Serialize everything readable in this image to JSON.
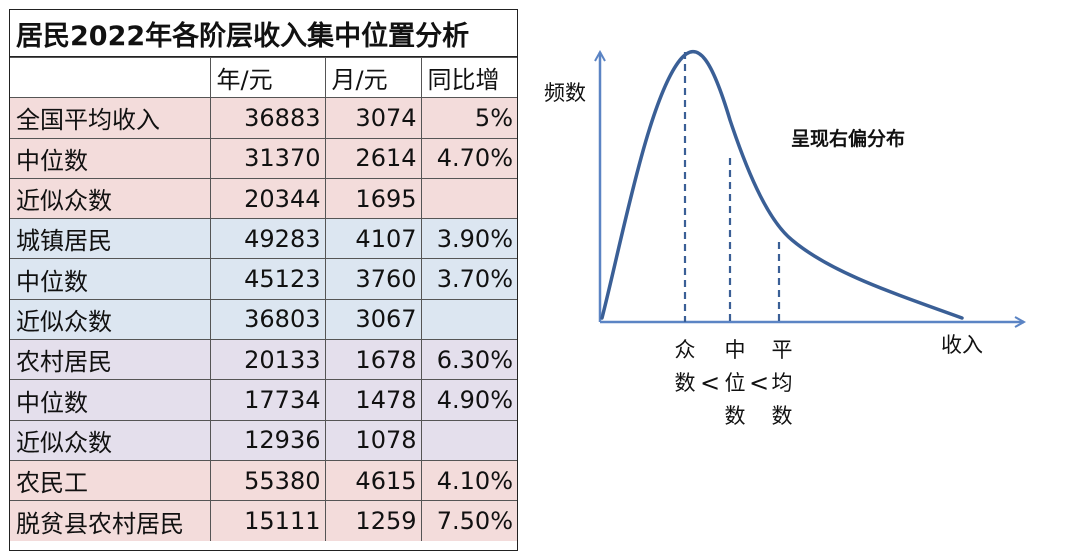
{
  "table": {
    "title": "居民2022年各阶层收入集中位置分析",
    "headers": [
      "",
      "年/元",
      "月/元",
      "同比增"
    ],
    "rows": [
      {
        "label": "全国平均收入",
        "year": "36883",
        "month": "3074",
        "yoy": "5%",
        "group": "pink"
      },
      {
        "label": "中位数",
        "year": "31370",
        "month": "2614",
        "yoy": "4.70%",
        "group": "pink"
      },
      {
        "label": "近似众数",
        "year": "20344",
        "month": "1695",
        "yoy": "",
        "group": "pink"
      },
      {
        "label": "城镇居民",
        "year": "49283",
        "month": "4107",
        "yoy": "3.90%",
        "group": "blue"
      },
      {
        "label": "中位数",
        "year": "45123",
        "month": "3760",
        "yoy": "3.70%",
        "group": "blue"
      },
      {
        "label": "近似众数",
        "year": "36803",
        "month": "3067",
        "yoy": "",
        "group": "blue"
      },
      {
        "label": "农村居民",
        "year": "20133",
        "month": "1678",
        "yoy": "6.30%",
        "group": "lav"
      },
      {
        "label": "中位数",
        "year": "17734",
        "month": "1478",
        "yoy": "4.90%",
        "group": "lav"
      },
      {
        "label": "近似众数",
        "year": "12936",
        "month": "1078",
        "yoy": "",
        "group": "lav"
      },
      {
        "label": "农民工",
        "year": "55380",
        "month": "4615",
        "yoy": "4.10%",
        "group": "pink"
      },
      {
        "label": "脱贫县农村居民",
        "year": "15111",
        "month": "1259",
        "yoy": "7.50%",
        "group": "pink"
      }
    ]
  },
  "chart_data": {
    "type": "line",
    "ylabel": "频数",
    "xlabel": "收入",
    "annotation": "呈现右偏分布",
    "markers": [
      {
        "name": "众数",
        "label_lines": [
          "众",
          "数"
        ]
      },
      {
        "name": "中位数",
        "label_lines": [
          "中",
          "位",
          "数"
        ]
      },
      {
        "name": "平均数",
        "label_lines": [
          "平",
          "均",
          "数"
        ]
      }
    ],
    "comparators": [
      "<",
      "<"
    ],
    "curve_color": "#3a5f96",
    "axis_color": "#5b84c4",
    "marker_color": "#3a5f96",
    "grid": false
  }
}
